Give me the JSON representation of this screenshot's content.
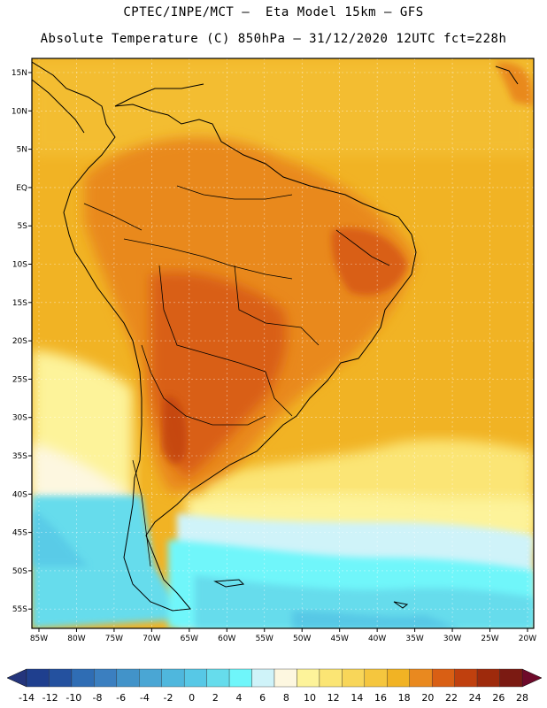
{
  "header": {
    "line1": "CPTEC/INPE/MCT –  Eta Model 15km – GFS",
    "line2": "Absolute Temperature (C) 850hPa – 31/12/2020 12UTC fct=228h"
  },
  "axes": {
    "lat_labels": [
      "15N",
      "10N",
      "5N",
      "EQ",
      "5S",
      "10S",
      "15S",
      "20S",
      "25S",
      "30S",
      "35S",
      "40S",
      "45S",
      "50S",
      "55S"
    ],
    "lon_labels": [
      "85W",
      "80W",
      "75W",
      "70W",
      "65W",
      "60W",
      "55W",
      "50W",
      "45W",
      "40W",
      "35W",
      "30W",
      "25W",
      "20W"
    ]
  },
  "colorbar": {
    "labels": [
      "-14",
      "-12",
      "-10",
      "-8",
      "-6",
      "-4",
      "-2",
      "0",
      "2",
      "4",
      "6",
      "8",
      "10",
      "12",
      "14",
      "16",
      "18",
      "20",
      "22",
      "24",
      "26",
      "28"
    ],
    "colors": [
      "#1f3f8e",
      "#24519f",
      "#2f6db4",
      "#3b7fc0",
      "#4293c9",
      "#4aa6d4",
      "#4fb7dd",
      "#57c8e6",
      "#66dcec",
      "#6ff6fa",
      "#cff3f9",
      "#fdf7e0",
      "#fdf39a",
      "#fbe574",
      "#f8d659",
      "#f5c63e",
      "#f1b324",
      "#e9891f",
      "#d95f14",
      "#c0400e",
      "#9e2a0c",
      "#7b1a12"
    ],
    "under_color": "#24357c",
    "over_color": "#6e0a2a"
  },
  "colors": {
    "field_warm": "#f0b52a",
    "field_hot": "#e68a1f",
    "field_hotter": "#d86a15",
    "field_cool": "#fbe574",
    "field_cold": "#66dcec",
    "coast": "#000000"
  }
}
